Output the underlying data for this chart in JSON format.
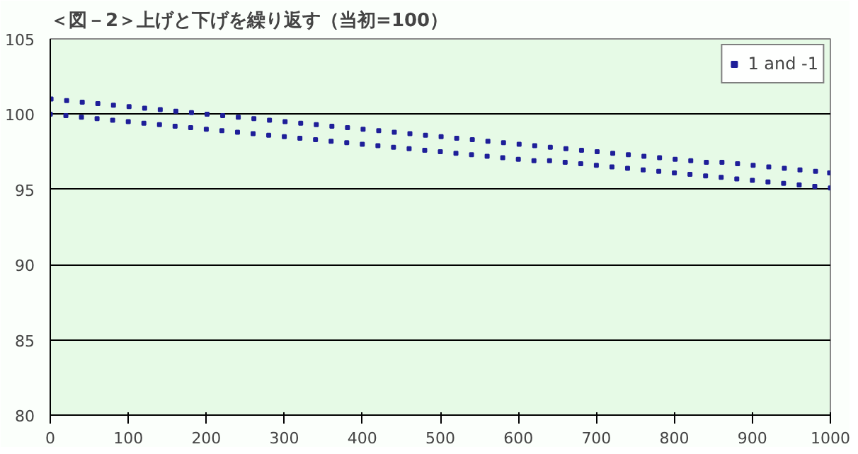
{
  "chart_data": {
    "type": "scatter",
    "title": "＜図－2＞上げと下げを繰り返す（当初=100）",
    "xlim": [
      0,
      1000
    ],
    "xticks": [
      0,
      100,
      200,
      300,
      400,
      500,
      600,
      700,
      800,
      900,
      1000
    ],
    "ylim": [
      80,
      105
    ],
    "yticks": [
      80,
      85,
      90,
      95,
      100,
      105
    ],
    "grid": "y",
    "legend": "top right",
    "marker": "square",
    "series": [
      {
        "name": "1 and -1",
        "color": "#1f1f99",
        "x": [
          0,
          1,
          20,
          21,
          40,
          41,
          60,
          61,
          80,
          81,
          100,
          101,
          120,
          121,
          140,
          141,
          160,
          161,
          180,
          181,
          200,
          201,
          220,
          221,
          240,
          241,
          260,
          261,
          280,
          281,
          300,
          301,
          320,
          321,
          340,
          341,
          360,
          361,
          380,
          381,
          400,
          401,
          420,
          421,
          440,
          441,
          460,
          461,
          480,
          481,
          500,
          501,
          520,
          521,
          540,
          541,
          560,
          561,
          580,
          581,
          600,
          601,
          620,
          621,
          640,
          641,
          660,
          661,
          680,
          681,
          700,
          701,
          720,
          721,
          740,
          741,
          760,
          761,
          780,
          781,
          800,
          801,
          820,
          821,
          840,
          841,
          860,
          861,
          880,
          881,
          900,
          901,
          920,
          921,
          940,
          941,
          960,
          961,
          980,
          981,
          999,
          1000
        ],
        "values": [
          100.0,
          101.0,
          99.9,
          100.9,
          99.8,
          100.8,
          99.7,
          100.7,
          99.6,
          100.6,
          99.5,
          100.5,
          99.4,
          100.4,
          99.3,
          100.3,
          99.2,
          100.2,
          99.1,
          100.1,
          99.0,
          100.0,
          98.9,
          99.9,
          98.8,
          99.8,
          98.7,
          99.7,
          98.6,
          99.6,
          98.5,
          99.5,
          98.4,
          99.4,
          98.3,
          99.3,
          98.2,
          99.2,
          98.1,
          99.1,
          98.0,
          99.0,
          97.9,
          98.9,
          97.8,
          98.8,
          97.7,
          98.7,
          97.6,
          98.6,
          97.5,
          98.5,
          97.4,
          98.4,
          97.3,
          98.3,
          97.2,
          98.2,
          97.1,
          98.1,
          97.0,
          98.0,
          96.9,
          97.9,
          96.9,
          97.8,
          96.8,
          97.7,
          96.7,
          97.6,
          96.6,
          97.5,
          96.5,
          97.4,
          96.4,
          97.3,
          96.3,
          97.2,
          96.2,
          97.1,
          96.1,
          97.0,
          96.0,
          96.9,
          95.9,
          96.8,
          95.8,
          96.8,
          95.7,
          96.7,
          95.6,
          96.6,
          95.5,
          96.5,
          95.4,
          96.4,
          95.3,
          96.3,
          95.2,
          96.2,
          96.1,
          95.1
        ]
      }
    ]
  }
}
